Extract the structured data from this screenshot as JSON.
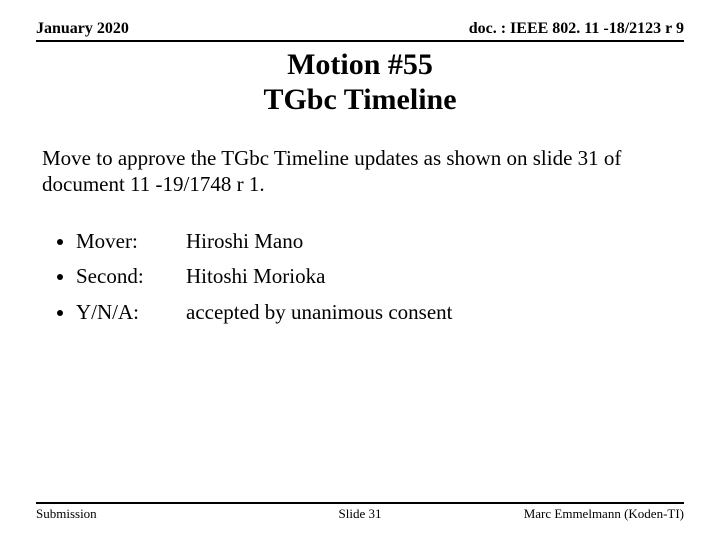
{
  "header": {
    "date": "January 2020",
    "doc": "doc. : IEEE 802. 11 -18/2123 r 9"
  },
  "title": {
    "line1": "Motion #55",
    "line2": "TGbc Timeline"
  },
  "body": "Move to approve the TGbc Timeline updates as shown on slide 31 of document 11 -19/1748 r 1.",
  "bullets": [
    {
      "label": "Mover:",
      "value": "Hiroshi Mano"
    },
    {
      "label": "Second:",
      "value": "Hitoshi Morioka"
    },
    {
      "label": "Y/N/A:",
      "value": " accepted by unanimous consent"
    }
  ],
  "footer": {
    "left": "Submission",
    "center": "Slide 31",
    "right": "Marc Emmelmann (Koden-TI)"
  }
}
